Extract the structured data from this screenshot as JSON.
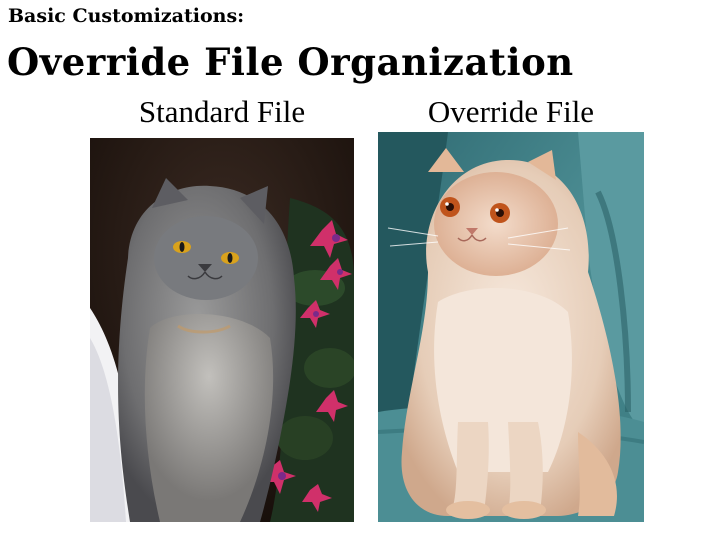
{
  "slide": {
    "kicker": "Basic Customizations:",
    "title": "Override File Organization"
  },
  "panels": [
    {
      "caption": "Standard File",
      "photo": {
        "subject": "gray-longhair-cat-photo",
        "colors": {
          "background": "#2a1a14",
          "fur": "#7f7f7f",
          "eyes": "#d9a21c",
          "flowers": "#d0306a"
        }
      }
    },
    {
      "caption": "Override File",
      "photo": {
        "subject": "cream-persian-cat-photo",
        "colors": {
          "background": "#3f7f86",
          "fur": "#e9d3c0",
          "eyes": "#c0541c",
          "chair": "#5a9aa0"
        }
      }
    }
  ]
}
